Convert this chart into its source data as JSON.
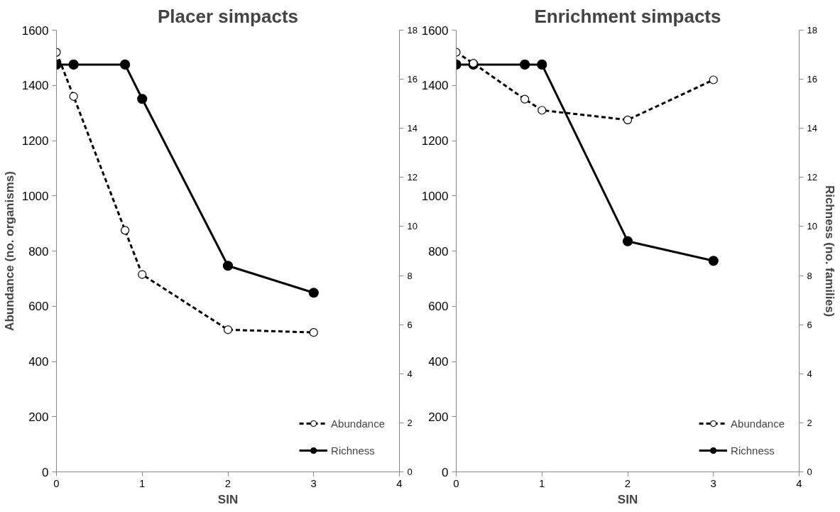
{
  "chart_data": [
    {
      "type": "line",
      "title": "Placer simpacts",
      "xlabel": "SIN",
      "ylabel": "Abundance (no. organisms)",
      "xlim": [
        0,
        4
      ],
      "xticks": [
        0,
        1,
        2,
        3,
        4
      ],
      "ylim": [
        0,
        1600
      ],
      "yticks": [
        0,
        200,
        400,
        600,
        800,
        1000,
        1200,
        1400,
        1600
      ],
      "y2lim": [
        0,
        18
      ],
      "y2ticks": [
        0,
        2,
        4,
        6,
        8,
        10,
        12,
        14,
        16,
        18
      ],
      "grid": false,
      "legend": "bottom right",
      "marker": "circle",
      "series": [
        {
          "name": "Abundance",
          "color": "#000000",
          "line_style": "dashed",
          "x": [
            0,
            0.2,
            0.8,
            1,
            2,
            3
          ],
          "values": [
            1520,
            1360,
            875,
            715,
            515,
            505
          ]
        },
        {
          "name": "Richness",
          "color": "#000000",
          "line_style": "solid",
          "axis": "y2",
          "x": [
            0,
            0.2,
            0.8,
            1,
            2,
            3
          ],
          "values": [
            16.6,
            16.6,
            16.6,
            15.2,
            8.4,
            7.3
          ]
        }
      ]
    },
    {
      "type": "line",
      "title": "Enrichment simpacts",
      "xlabel": "SIN",
      "y2label": "Richness (no. families)",
      "xlim": [
        0,
        4
      ],
      "xticks": [
        0,
        1,
        2,
        3,
        4
      ],
      "ylim": [
        0,
        1600
      ],
      "yticks": [
        0,
        200,
        400,
        600,
        800,
        1000,
        1200,
        1400,
        1600
      ],
      "y2lim": [
        0,
        18
      ],
      "y2ticks": [
        0,
        2,
        4,
        6,
        8,
        10,
        12,
        14,
        16,
        18
      ],
      "grid": false,
      "legend": "bottom right",
      "marker": "circle",
      "series": [
        {
          "name": "Abundance",
          "color": "#000000",
          "line_style": "dashed",
          "x": [
            0,
            0.2,
            0.8,
            1,
            2,
            3
          ],
          "values": [
            1520,
            1480,
            1350,
            1310,
            1275,
            1420
          ]
        },
        {
          "name": "Richness",
          "color": "#000000",
          "line_style": "solid",
          "axis": "y2",
          "x": [
            0,
            0.2,
            0.8,
            1,
            2,
            3
          ],
          "values": [
            16.6,
            16.6,
            16.6,
            16.6,
            9.4,
            8.6
          ]
        }
      ]
    }
  ]
}
